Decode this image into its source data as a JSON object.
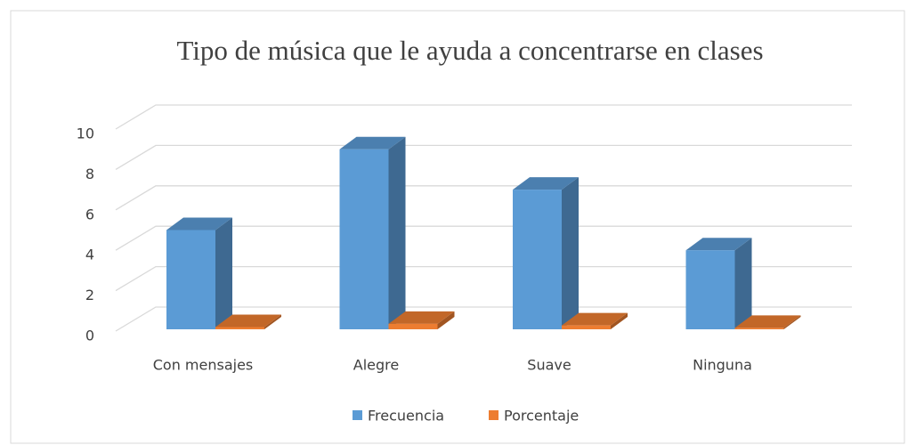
{
  "chart_data": {
    "type": "bar3d",
    "title": "Tipo de música que le ayuda a concentrarse en clases",
    "categories": [
      "Con mensajes",
      "Alegre",
      "Suave",
      "Ninguna"
    ],
    "series": [
      {
        "name": "Frecuencia",
        "color": "#5b9bd5",
        "values": [
          5,
          9,
          7,
          4
        ]
      },
      {
        "name": "Porcentaje",
        "color": "#ed7d31",
        "values": [
          0.2,
          0.36,
          0.28,
          0.16
        ]
      }
    ],
    "ylim": [
      0,
      10
    ],
    "yticks": [
      0,
      2,
      4,
      6,
      8,
      10
    ],
    "grid": true,
    "legend": "bottom"
  }
}
